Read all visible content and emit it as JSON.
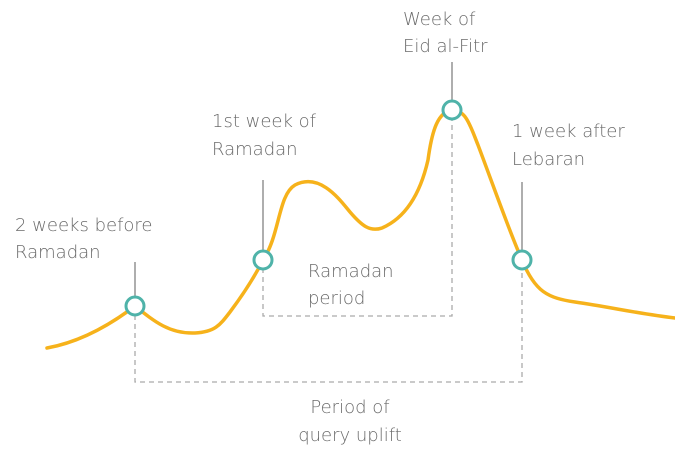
{
  "annotations": [
    {
      "lines": [
        "2 weeks before",
        "Ramadan"
      ]
    },
    {
      "lines": [
        "1st week of",
        "Ramadan"
      ]
    },
    {
      "lines": [
        "Week of",
        "Eid al-Fitr"
      ]
    },
    {
      "lines": [
        "1 week after",
        "Lebaran"
      ]
    }
  ],
  "brackets": [
    {
      "lines": [
        "Ramadan",
        "period"
      ]
    },
    {
      "lines": [
        "Period of",
        "query uplift"
      ]
    }
  ]
}
